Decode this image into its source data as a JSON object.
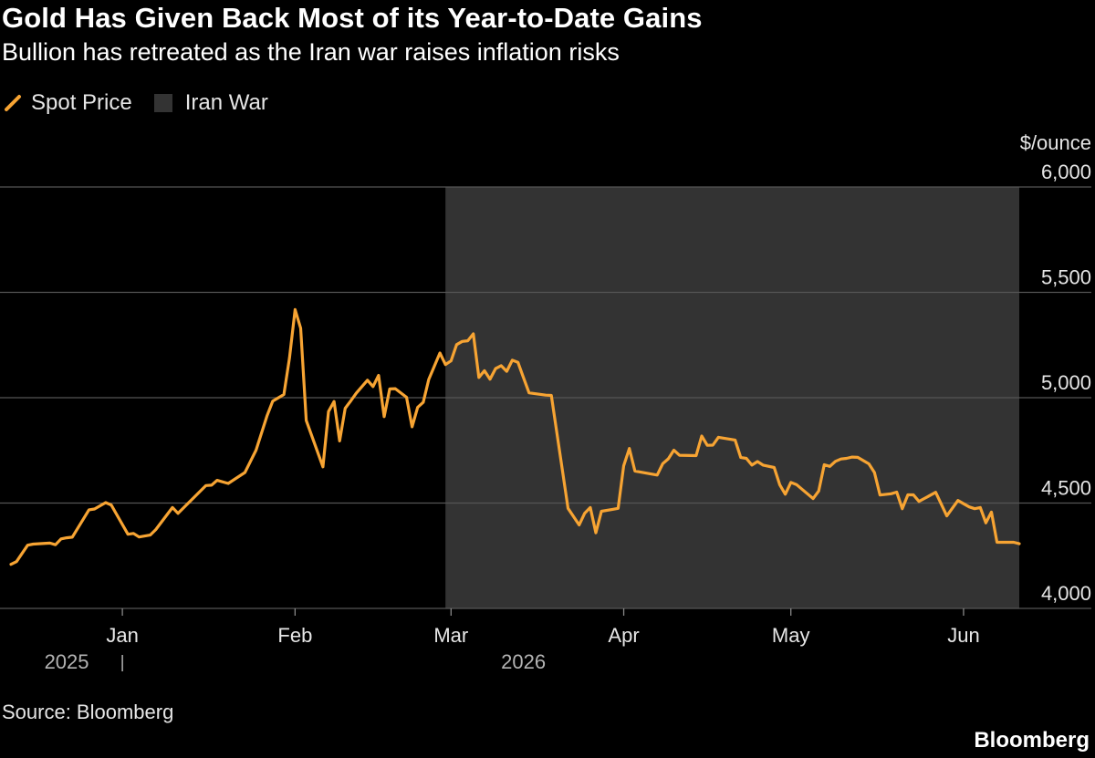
{
  "header": {
    "title": "Gold Has Given Back Most of its Year-to-Date Gains",
    "subtitle": "Bullion has retreated as the Iran war raises inflation risks"
  },
  "legend": {
    "spot_price": "Spot Price",
    "iran_war": "Iran War"
  },
  "footer": {
    "source": "Source: Bloomberg",
    "brand": "Bloomberg"
  },
  "colors": {
    "line": "#f7a433",
    "shade": "#333333",
    "grid": "#555555",
    "background": "#000000"
  },
  "chart_data": {
    "type": "line",
    "title": "Gold Has Given Back Most of its Year-to-Date Gains",
    "subtitle": "Bullion has retreated as the Iran war raises inflation risks",
    "ylabel": "$/ounce",
    "ylim": [
      4000,
      6000
    ],
    "yticks": [
      4000,
      4500,
      5000,
      5500,
      6000
    ],
    "ytick_labels": [
      "4,000",
      "4,500",
      "5,000",
      "5,500",
      "6,000"
    ],
    "y_axis_side": "right",
    "grid": "horizontal",
    "legend_position": "top-left",
    "xlim": [
      "2025-12-12",
      "2026-06-11"
    ],
    "xticks": [
      {
        "date": "2026-01-01",
        "label": "Jan"
      },
      {
        "date": "2026-02-01",
        "label": "Feb"
      },
      {
        "date": "2026-03-01",
        "label": "Mar"
      },
      {
        "date": "2026-04-01",
        "label": "Apr"
      },
      {
        "date": "2026-05-01",
        "label": "May"
      },
      {
        "date": "2026-06-01",
        "label": "Jun"
      }
    ],
    "year_labels": [
      {
        "label": "2025",
        "anchor_date": "2025-12-22"
      },
      {
        "label": "2026",
        "anchor_date": "2026-03-14"
      }
    ],
    "year_separator_date": "2026-01-01",
    "shaded_regions": [
      {
        "name": "Iran War",
        "start": "2026-02-28",
        "end": "2026-06-11"
      }
    ],
    "series": [
      {
        "name": "Spot Price",
        "points": [
          [
            "2025-12-12",
            4209
          ],
          [
            "2025-12-13",
            4222
          ],
          [
            "2025-12-15",
            4300
          ],
          [
            "2025-12-16",
            4305
          ],
          [
            "2025-12-19",
            4310
          ],
          [
            "2025-12-20",
            4302
          ],
          [
            "2025-12-21",
            4330
          ],
          [
            "2025-12-22",
            4335
          ],
          [
            "2025-12-23",
            4338
          ],
          [
            "2025-12-26",
            4468
          ],
          [
            "2025-12-27",
            4472
          ],
          [
            "2025-12-29",
            4502
          ],
          [
            "2025-12-30",
            4491
          ],
          [
            "2026-01-02",
            4352
          ],
          [
            "2026-01-03",
            4356
          ],
          [
            "2026-01-04",
            4339
          ],
          [
            "2026-01-06",
            4348
          ],
          [
            "2026-01-07",
            4374
          ],
          [
            "2026-01-10",
            4479
          ],
          [
            "2026-01-11",
            4451
          ],
          [
            "2026-01-16",
            4583
          ],
          [
            "2026-01-17",
            4585
          ],
          [
            "2026-01-18",
            4608
          ],
          [
            "2026-01-20",
            4593
          ],
          [
            "2026-01-23",
            4645
          ],
          [
            "2026-01-25",
            4751
          ],
          [
            "2026-01-27",
            4916
          ],
          [
            "2026-01-28",
            4984
          ],
          [
            "2026-01-30",
            5015
          ],
          [
            "2026-01-31",
            5187
          ],
          [
            "2026-02-01",
            5418
          ],
          [
            "2026-02-02",
            5330
          ],
          [
            "2026-02-03",
            4892
          ],
          [
            "2026-02-06",
            4672
          ],
          [
            "2026-02-07",
            4934
          ],
          [
            "2026-02-08",
            4982
          ],
          [
            "2026-02-09",
            4795
          ],
          [
            "2026-02-10",
            4950
          ],
          [
            "2026-02-11",
            4985
          ],
          [
            "2026-02-12",
            5022
          ],
          [
            "2026-02-14",
            5083
          ],
          [
            "2026-02-15",
            5053
          ],
          [
            "2026-02-16",
            5106
          ],
          [
            "2026-02-17",
            4910
          ],
          [
            "2026-02-18",
            5042
          ],
          [
            "2026-02-19",
            5043
          ],
          [
            "2026-02-21",
            5002
          ],
          [
            "2026-02-22",
            4862
          ],
          [
            "2026-02-23",
            4954
          ],
          [
            "2026-02-24",
            4978
          ],
          [
            "2026-02-25",
            5087
          ],
          [
            "2026-02-27",
            5212
          ],
          [
            "2026-02-28",
            5157
          ],
          [
            "2026-03-01",
            5175
          ],
          [
            "2026-03-02",
            5252
          ],
          [
            "2026-03-03",
            5267
          ],
          [
            "2026-03-04",
            5270
          ],
          [
            "2026-03-05",
            5303
          ],
          [
            "2026-03-06",
            5096
          ],
          [
            "2026-03-07",
            5128
          ],
          [
            "2026-03-08",
            5088
          ],
          [
            "2026-03-09",
            5138
          ],
          [
            "2026-03-10",
            5152
          ],
          [
            "2026-03-11",
            5125
          ],
          [
            "2026-03-12",
            5178
          ],
          [
            "2026-03-13",
            5168
          ],
          [
            "2026-03-14",
            5095
          ],
          [
            "2026-03-15",
            5023
          ],
          [
            "2026-03-18",
            5012
          ],
          [
            "2026-03-19",
            5011
          ],
          [
            "2026-03-22",
            4475
          ],
          [
            "2026-03-24",
            4396
          ],
          [
            "2026-03-25",
            4452
          ],
          [
            "2026-03-26",
            4479
          ],
          [
            "2026-03-27",
            4359
          ],
          [
            "2026-03-28",
            4461
          ],
          [
            "2026-03-30",
            4470
          ],
          [
            "2026-03-31",
            4475
          ],
          [
            "2026-04-01",
            4677
          ],
          [
            "2026-04-02",
            4759
          ],
          [
            "2026-04-03",
            4652
          ],
          [
            "2026-04-07",
            4633
          ],
          [
            "2026-04-08",
            4687
          ],
          [
            "2026-04-09",
            4710
          ],
          [
            "2026-04-10",
            4751
          ],
          [
            "2026-04-11",
            4727
          ],
          [
            "2026-04-14",
            4725
          ],
          [
            "2026-04-15",
            4818
          ],
          [
            "2026-04-16",
            4774
          ],
          [
            "2026-04-17",
            4775
          ],
          [
            "2026-04-18",
            4812
          ],
          [
            "2026-04-21",
            4799
          ],
          [
            "2026-04-22",
            4716
          ],
          [
            "2026-04-23",
            4712
          ],
          [
            "2026-04-24",
            4680
          ],
          [
            "2026-04-25",
            4697
          ],
          [
            "2026-04-26",
            4680
          ],
          [
            "2026-04-28",
            4669
          ],
          [
            "2026-04-29",
            4587
          ],
          [
            "2026-04-30",
            4542
          ],
          [
            "2026-05-01",
            4598
          ],
          [
            "2026-05-02",
            4588
          ],
          [
            "2026-05-05",
            4521
          ],
          [
            "2026-05-06",
            4557
          ],
          [
            "2026-05-07",
            4682
          ],
          [
            "2026-05-08",
            4674
          ],
          [
            "2026-05-09",
            4698
          ],
          [
            "2026-05-10",
            4709
          ],
          [
            "2026-05-11",
            4712
          ],
          [
            "2026-05-12",
            4718
          ],
          [
            "2026-05-13",
            4717
          ],
          [
            "2026-05-15",
            4686
          ],
          [
            "2026-05-16",
            4645
          ],
          [
            "2026-05-17",
            4538
          ],
          [
            "2026-05-19",
            4544
          ],
          [
            "2026-05-20",
            4552
          ],
          [
            "2026-05-21",
            4473
          ],
          [
            "2026-05-22",
            4539
          ],
          [
            "2026-05-23",
            4539
          ],
          [
            "2026-05-24",
            4508
          ],
          [
            "2026-05-25",
            4522
          ],
          [
            "2026-05-27",
            4551
          ],
          [
            "2026-05-29",
            4439
          ],
          [
            "2026-05-31",
            4512
          ],
          [
            "2026-06-02",
            4482
          ],
          [
            "2026-06-03",
            4473
          ],
          [
            "2026-06-04",
            4479
          ],
          [
            "2026-06-05",
            4406
          ],
          [
            "2026-06-06",
            4457
          ],
          [
            "2026-06-07",
            4314
          ],
          [
            "2026-06-10",
            4314
          ],
          [
            "2026-06-11",
            4307
          ]
        ]
      }
    ]
  }
}
